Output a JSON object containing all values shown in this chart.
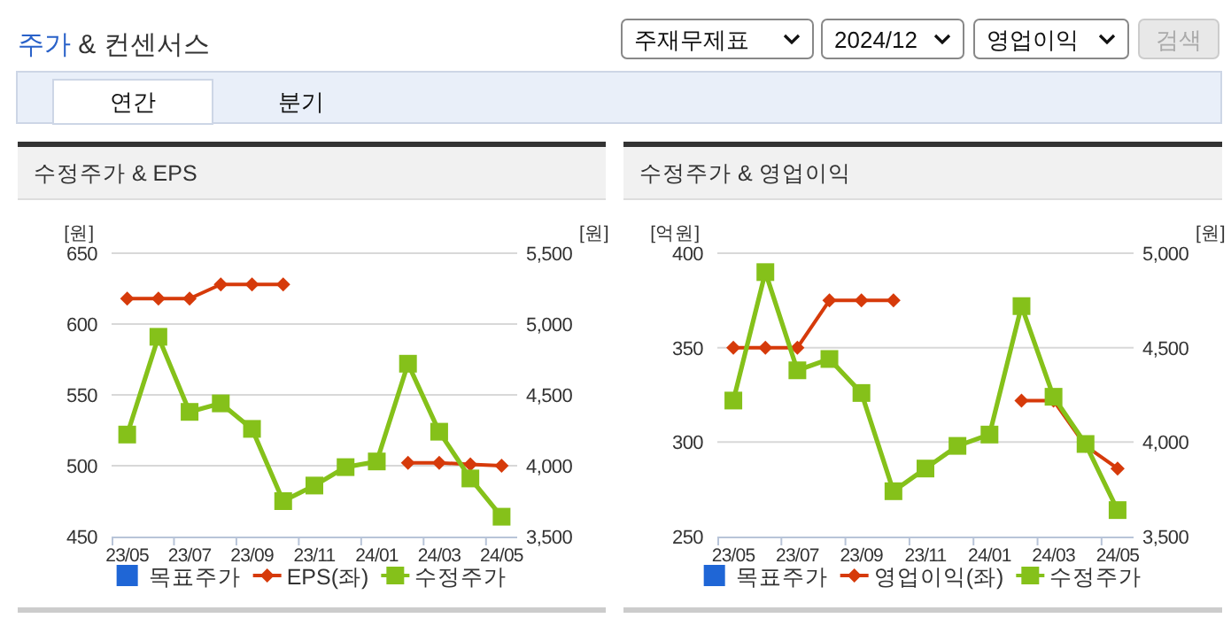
{
  "chart_data": [
    {
      "type": "other",
      "title": "주가 & 컨센서스",
      "annotations": [
        "주재무제표",
        "2024/12",
        "영업이익",
        "검색",
        "연간",
        "분기"
      ]
    },
    {
      "type": "line",
      "title": "수정주가 & EPS",
      "categories": [
        "23/05",
        null,
        "23/07",
        null,
        "23/09",
        null,
        "23/11",
        null,
        "24/01",
        null,
        "24/03",
        null,
        "24/05"
      ],
      "ylabel": "[원]",
      "y2label": "[원]",
      "ylim": [
        450,
        650
      ],
      "yticks": [
        450,
        500,
        550,
        600,
        650
      ],
      "y2lim": [
        3500,
        5500
      ],
      "y2ticks": [
        {
          "value": 3500,
          "label": "3,500"
        },
        {
          "value": 4000,
          "label": "4,000"
        },
        {
          "value": 4500,
          "label": "4,500"
        },
        {
          "value": 5000,
          "label": "5,000"
        },
        {
          "value": 5500,
          "label": "5,500"
        }
      ],
      "grid": "y",
      "legend": "bottom",
      "series": [
        {
          "name": "목표주가",
          "type": "bar",
          "color": "#1f66d6",
          "values": [
            null,
            null,
            null,
            null,
            null,
            null,
            null,
            null,
            null,
            null,
            null,
            null,
            null
          ]
        },
        {
          "name": "EPS(좌)",
          "type": "line",
          "marker": "diamond",
          "color": "#d63a0a",
          "values": [
            618,
            618,
            618,
            628,
            628,
            628,
            null,
            null,
            null,
            502,
            502,
            501,
            500
          ]
        },
        {
          "name": "수정주가",
          "type": "line",
          "marker": "square",
          "axis": "y2",
          "color": "#85c11a",
          "values": [
            4220,
            4910,
            4380,
            4440,
            4260,
            3750,
            3860,
            3990,
            4030,
            4720,
            4240,
            3910,
            3640
          ]
        }
      ]
    },
    {
      "type": "line",
      "title": "수정주가 & 영업이익",
      "categories": [
        "23/05",
        null,
        "23/07",
        null,
        "23/09",
        null,
        "23/11",
        null,
        "24/01",
        null,
        "24/03",
        null,
        "24/05"
      ],
      "ylabel": "[억원]",
      "y2label": "[원]",
      "ylim": [
        250,
        400
      ],
      "yticks": [
        250,
        300,
        350,
        400
      ],
      "y2lim": [
        3500,
        5000
      ],
      "y2ticks": [
        {
          "value": 3500,
          "label": "3,500"
        },
        {
          "value": 4000,
          "label": "4,000"
        },
        {
          "value": 4500,
          "label": "4,500"
        },
        {
          "value": 5000,
          "label": "5,000"
        }
      ],
      "grid": "y",
      "legend": "bottom",
      "series": [
        {
          "name": "목표주가",
          "type": "bar",
          "color": "#1f66d6",
          "values": [
            null,
            null,
            null,
            null,
            null,
            null,
            null,
            null,
            null,
            null,
            null,
            null,
            null
          ]
        },
        {
          "name": "영업이익(좌)",
          "type": "line",
          "marker": "diamond",
          "color": "#d63a0a",
          "values": [
            350,
            350,
            350,
            375,
            375,
            375,
            null,
            null,
            null,
            322,
            322,
            298,
            286
          ]
        },
        {
          "name": "수정주가",
          "type": "line",
          "marker": "square",
          "axis": "y2",
          "color": "#85c11a",
          "values": [
            4220,
            4900,
            4380,
            4440,
            4260,
            3740,
            3860,
            3980,
            4040,
            4720,
            4240,
            3990,
            3640
          ]
        }
      ]
    }
  ]
}
